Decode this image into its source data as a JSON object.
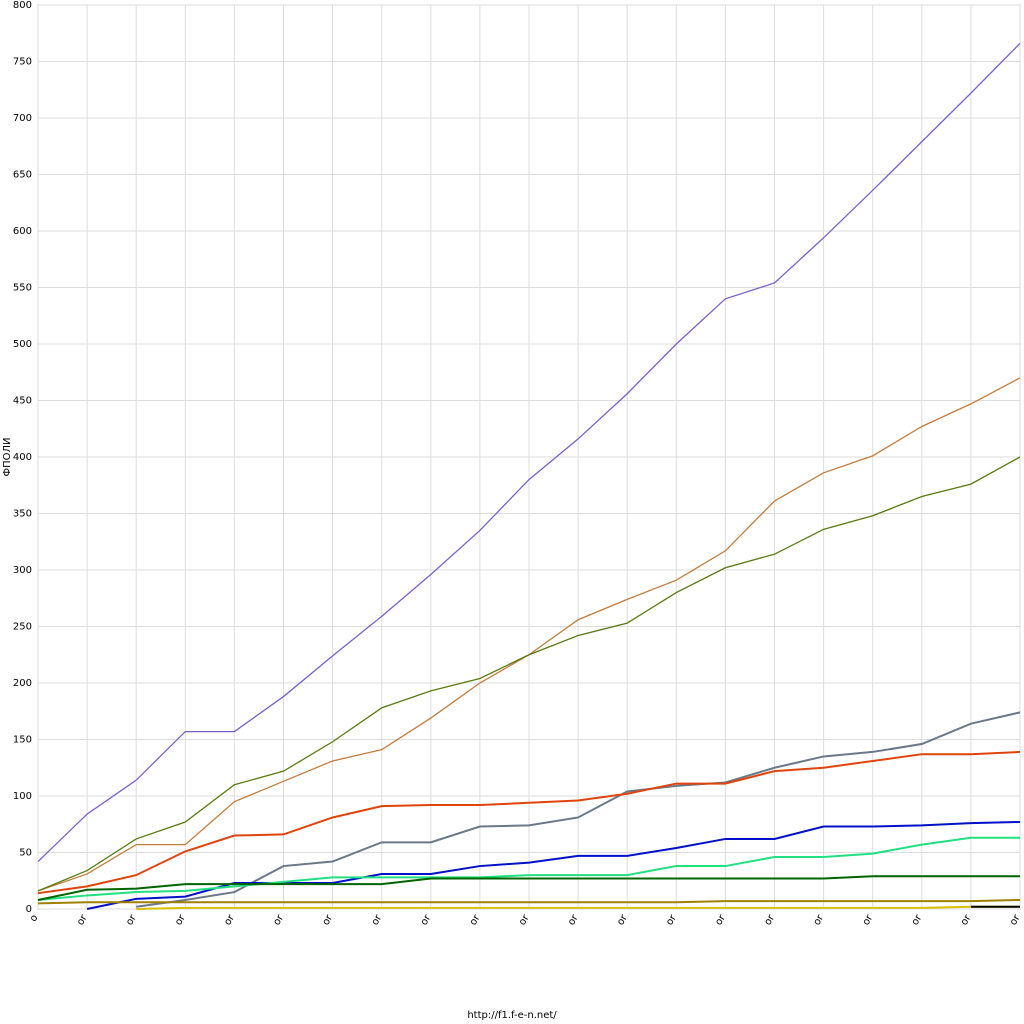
{
  "chart_data": {
    "type": "line",
    "y_label": "ФПОЛИ",
    "footer": "http://f1.f-e-n.net/",
    "categories": [
      "o",
      "or",
      "or",
      "or",
      "or",
      "or",
      "or",
      "or",
      "or",
      "or",
      "or",
      "or",
      "or",
      "or",
      "or",
      "or",
      "or",
      "or",
      "or",
      "or",
      "or"
    ],
    "ylim": [
      0,
      800
    ],
    "yticks": [
      0,
      50,
      100,
      150,
      200,
      250,
      300,
      350,
      400,
      450,
      500,
      550,
      600,
      650,
      700,
      750,
      800
    ],
    "grid": true,
    "series": [
      {
        "color": "#7b5fd0",
        "values": [
          42,
          84,
          114,
          157,
          157,
          188,
          224,
          259,
          296,
          335,
          380,
          416,
          456,
          500,
          540,
          554,
          594,
          636,
          679,
          722,
          766
        ]
      },
      {
        "color": "#c47c3c",
        "values": [
          16,
          31,
          57,
          57,
          95,
          113,
          131,
          141,
          169,
          200,
          225,
          256,
          274,
          291,
          317,
          361,
          386,
          401,
          427,
          447,
          470
        ]
      },
      {
        "color": "#5a7a10",
        "values": [
          16,
          34,
          62,
          77,
          110,
          122,
          148,
          178,
          193,
          204,
          225,
          242,
          253,
          280,
          302,
          314,
          336,
          348,
          365,
          376,
          400
        ]
      },
      {
        "color": "#6a7888",
        "values": [
          null,
          null,
          2,
          8,
          15,
          38,
          42,
          59,
          59,
          73,
          74,
          81,
          104,
          109,
          112,
          125,
          135,
          139,
          146,
          164,
          174
        ]
      },
      {
        "color": "#e0440c",
        "values": [
          14,
          20,
          30,
          51,
          65,
          66,
          81,
          91,
          92,
          92,
          94,
          96,
          102,
          111,
          111,
          122,
          125,
          131,
          137,
          137,
          139
        ]
      },
      {
        "color": "#0010c8",
        "values": [
          null,
          0,
          9,
          11,
          23,
          23,
          23,
          31,
          31,
          38,
          41,
          47,
          47,
          54,
          62,
          62,
          73,
          73,
          74,
          76,
          77
        ]
      },
      {
        "color": "#20e080",
        "values": [
          8,
          12,
          15,
          16,
          20,
          24,
          28,
          28,
          28,
          28,
          30,
          30,
          30,
          38,
          38,
          46,
          46,
          49,
          57,
          63,
          63
        ]
      },
      {
        "color": "#006400",
        "values": [
          8,
          17,
          18,
          22,
          22,
          22,
          22,
          22,
          27,
          27,
          27,
          27,
          27,
          27,
          27,
          27,
          27,
          29,
          29,
          29,
          29
        ]
      },
      {
        "color": "#a08000",
        "values": [
          5,
          6,
          6,
          6,
          6,
          6,
          6,
          6,
          6,
          6,
          6,
          6,
          6,
          6,
          7,
          7,
          7,
          7,
          7,
          7,
          8
        ]
      },
      {
        "color": "#d8c000",
        "values": [
          null,
          null,
          0,
          1,
          1,
          1,
          1,
          1,
          1,
          1,
          1,
          1,
          1,
          1,
          1,
          1,
          1,
          1,
          1,
          2,
          2
        ]
      },
      {
        "color": "#000000",
        "values": [
          null,
          null,
          null,
          null,
          null,
          null,
          null,
          null,
          null,
          null,
          null,
          null,
          null,
          null,
          null,
          null,
          null,
          null,
          null,
          2,
          2
        ]
      }
    ]
  }
}
